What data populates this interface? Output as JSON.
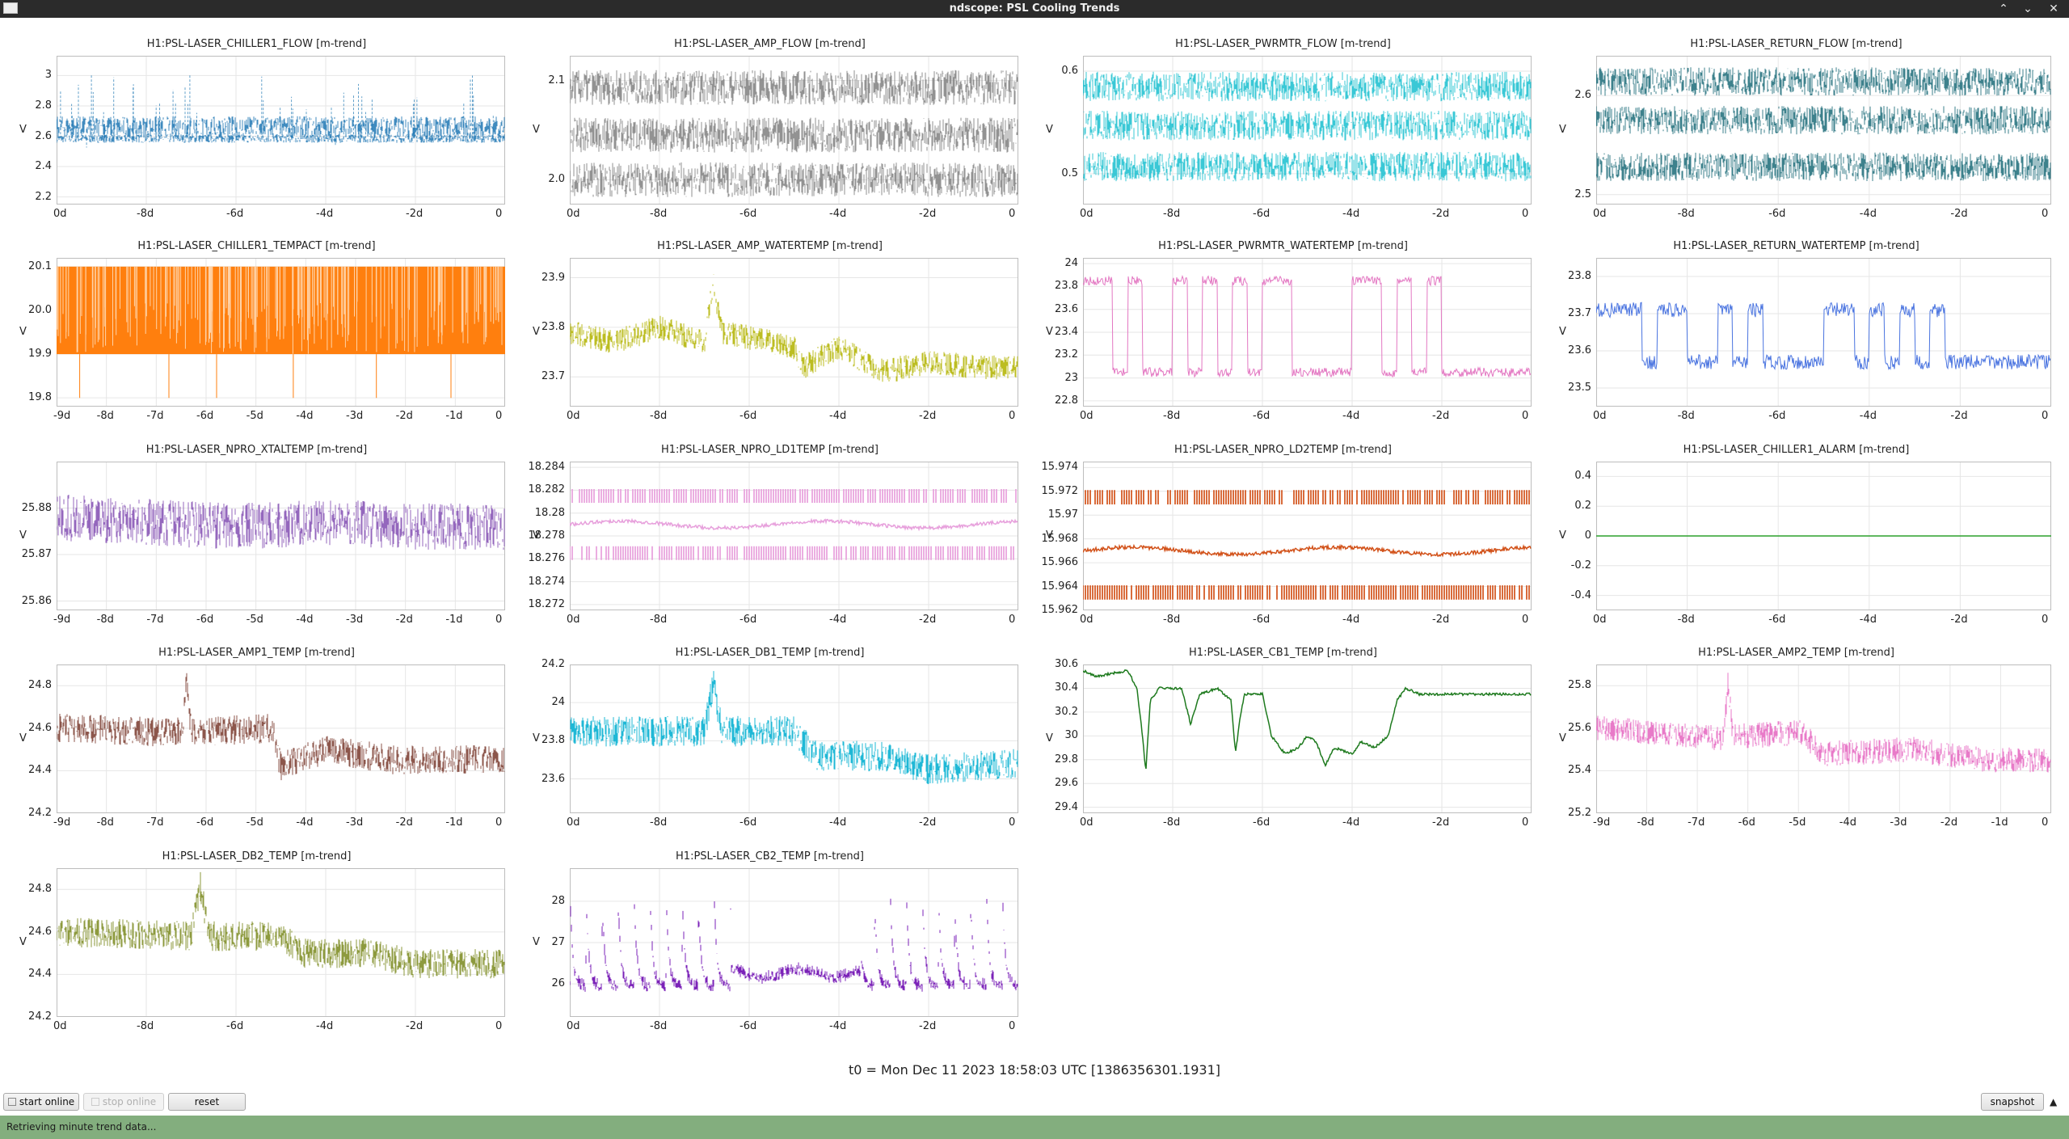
{
  "window": {
    "title": "ndscope: PSL Cooling Trends",
    "controls": [
      "⌃",
      "⌄",
      "✕"
    ]
  },
  "x_axis_prefix": "",
  "y_label": "V",
  "panels": [
    {
      "id": "chiller1-flow",
      "title": "H1:PSL-LASER_CHILLER1_FLOW [m-trend]",
      "color": "#1f77b4",
      "ylim": [
        2.15,
        3.13
      ],
      "yticks": [
        "3",
        "2.8",
        "2.6",
        "2.4",
        "2.2"
      ],
      "xticks": [
        "0d",
        "-8d",
        "-6d",
        "-4d",
        "-2d",
        "0"
      ],
      "style": "bands",
      "bands": [
        {
          "y": 2.585,
          "w": 0.035
        },
        {
          "y": 2.66,
          "w": 0.09
        }
      ],
      "spikes": true
    },
    {
      "id": "amp-flow",
      "title": "H1:PSL-LASER_AMP_FLOW [m-trend]",
      "color": "#7f7f7f",
      "ylim": [
        1.975,
        2.125
      ],
      "yticks": [
        "2.1",
        "2.0"
      ],
      "xticks": [
        "0d",
        "-8d",
        "-6d",
        "-4d",
        "-2d",
        "0"
      ],
      "style": "bands",
      "bands": [
        {
          "y": 2.093,
          "w": 0.022
        },
        {
          "y": 2.045,
          "w": 0.022
        },
        {
          "y": 2.0,
          "w": 0.022
        }
      ]
    },
    {
      "id": "pwrmtr-flow",
      "title": "H1:PSL-LASER_PWRMTR_FLOW [m-trend]",
      "color": "#17becf",
      "ylim": [
        0.47,
        0.615
      ],
      "yticks": [
        "0.6",
        "0.5"
      ],
      "xticks": [
        "0d",
        "-8d",
        "-6d",
        "-4d",
        "-2d",
        "0"
      ],
      "style": "bands",
      "bands": [
        {
          "y": 0.585,
          "w": 0.018
        },
        {
          "y": 0.547,
          "w": 0.018
        },
        {
          "y": 0.507,
          "w": 0.018
        }
      ]
    },
    {
      "id": "return-flow",
      "title": "H1:PSL-LASER_RETURN_FLOW [m-trend]",
      "color": "#1b6b78",
      "ylim": [
        2.49,
        2.64
      ],
      "yticks": [
        "2.6",
        "2.5"
      ],
      "xticks": [
        "0d",
        "-8d",
        "-6d",
        "-4d",
        "-2d",
        "0"
      ],
      "style": "bands",
      "bands": [
        {
          "y": 2.614,
          "w": 0.018
        },
        {
          "y": 2.575,
          "w": 0.018
        },
        {
          "y": 2.528,
          "w": 0.018
        }
      ]
    },
    {
      "id": "chiller1-tempact",
      "title": "H1:PSL-LASER_CHILLER1_TEMPACT [m-trend]",
      "color": "#ff7f0e",
      "ylim": [
        19.78,
        20.12
      ],
      "yticks": [
        "20.1",
        "20.0",
        "19.9",
        "19.8"
      ],
      "xticks": [
        "-9d",
        "-8d",
        "-7d",
        "-6d",
        "-5d",
        "-4d",
        "-3d",
        "-2d",
        "-1d",
        "0"
      ],
      "style": "fill",
      "fill": [
        19.9,
        20.1
      ],
      "spikes": true
    },
    {
      "id": "amp-watertemp",
      "title": "H1:PSL-LASER_AMP_WATERTEMP [m-trend]",
      "color": "#bcbd22",
      "ylim": [
        23.64,
        23.94
      ],
      "yticks": [
        "23.9",
        "23.8",
        "23.7"
      ],
      "xticks": [
        "0d",
        "-8d",
        "-6d",
        "-4d",
        "-2d",
        "0"
      ],
      "style": "noisy",
      "knots": [
        [
          0,
          23.79
        ],
        [
          0.1,
          23.77
        ],
        [
          0.2,
          23.8
        ],
        [
          0.3,
          23.77
        ],
        [
          0.32,
          23.89
        ],
        [
          0.34,
          23.79
        ],
        [
          0.45,
          23.77
        ],
        [
          0.5,
          23.76
        ],
        [
          0.52,
          23.72
        ],
        [
          0.6,
          23.76
        ],
        [
          0.7,
          23.71
        ],
        [
          0.8,
          23.73
        ],
        [
          0.9,
          23.72
        ],
        [
          1,
          23.72
        ]
      ],
      "amp": 0.025
    },
    {
      "id": "pwrmtr-watertemp",
      "title": "H1:PSL-LASER_PWRMTR_WATERTEMP [m-trend]",
      "color": "#e377c2",
      "ylim": [
        22.75,
        24.05
      ],
      "yticks": [
        "24",
        "23.8",
        "23.6",
        "23.4",
        "23.2",
        "23",
        "22.8"
      ],
      "xticks": [
        "0d",
        "-8d",
        "-6d",
        "-4d",
        "-2d",
        "0"
      ],
      "style": "square",
      "hi": 23.85,
      "lo": 23.05,
      "pattern": [
        1,
        1,
        0,
        1,
        0,
        0,
        1,
        0,
        1,
        0,
        1,
        0,
        1,
        1,
        0,
        0,
        0,
        0,
        1,
        1,
        0,
        1,
        0,
        1,
        0,
        0,
        0,
        0,
        0,
        0
      ],
      "amp": 0.04
    },
    {
      "id": "return-watertemp",
      "title": "H1:PSL-LASER_RETURN_WATERTEMP [m-trend]",
      "color": "#4a74e0",
      "ylim": [
        23.45,
        23.85
      ],
      "yticks": [
        "23.8",
        "23.7",
        "23.6",
        "23.5"
      ],
      "xticks": [
        "0d",
        "-8d",
        "-6d",
        "-4d",
        "-2d",
        "0"
      ],
      "style": "square",
      "hi": 23.71,
      "lo": 23.57,
      "pattern": [
        1,
        1,
        1,
        0,
        1,
        1,
        0,
        0,
        1,
        0,
        1,
        0,
        0,
        0,
        0,
        1,
        1,
        0,
        1,
        0,
        1,
        0,
        1,
        0,
        0,
        0,
        0,
        0,
        0,
        0
      ],
      "amp": 0.02
    },
    {
      "id": "npro-xtaltemp",
      "title": "H1:PSL-LASER_NPRO_XTALTEMP [m-trend]",
      "color": "#9467bd",
      "ylim": [
        25.858,
        25.89
      ],
      "yticks": [
        "25.88",
        "25.87",
        "25.86"
      ],
      "xticks": [
        "-9d",
        "-8d",
        "-7d",
        "-6d",
        "-5d",
        "-4d",
        "-3d",
        "-2d",
        "-1d",
        "0"
      ],
      "style": "noisy",
      "knots": [
        [
          0,
          25.878
        ],
        [
          0.2,
          25.877
        ],
        [
          0.4,
          25.876
        ],
        [
          0.6,
          25.877
        ],
        [
          0.8,
          25.876
        ],
        [
          1,
          25.876
        ]
      ],
      "amp": 0.005
    },
    {
      "id": "npro-ld1temp",
      "title": "H1:PSL-LASER_NPRO_LD1TEMP [m-trend]",
      "color": "#e7a0dc",
      "ylim": [
        18.2715,
        18.2845
      ],
      "yticks": [
        "18.284",
        "18.282",
        "18.28",
        "18.278",
        "18.276",
        "18.274",
        "18.272"
      ],
      "xticks": [
        "0d",
        "-8d",
        "-6d",
        "-4d",
        "-2d",
        "0"
      ],
      "style": "quant",
      "levels": [
        18.2815,
        18.279,
        18.2765
      ],
      "mid": 1
    },
    {
      "id": "npro-ld2temp",
      "title": "H1:PSL-LASER_NPRO_LD2TEMP [m-trend]",
      "color": "#d2521a",
      "ylim": [
        15.962,
        15.9745
      ],
      "yticks": [
        "15.974",
        "15.972",
        "15.97",
        "15.968",
        "15.966",
        "15.964",
        "15.962"
      ],
      "xticks": [
        "0d",
        "-8d",
        "-6d",
        "-4d",
        "-2d",
        "0"
      ],
      "style": "quant",
      "levels": [
        15.9715,
        15.967,
        15.9635
      ],
      "mid": 1
    },
    {
      "id": "chiller1-alarm",
      "title": "H1:PSL-LASER_CHILLER1_ALARM [m-trend]",
      "color": "#2ca02c",
      "ylim": [
        -0.5,
        0.5
      ],
      "yticks": [
        "0.4",
        "0.2",
        "0",
        "-0.2",
        "-0.4"
      ],
      "xticks": [
        "0d",
        "-8d",
        "-6d",
        "-4d",
        "-2d",
        "0"
      ],
      "style": "flat",
      "value": 0
    },
    {
      "id": "amp1-temp",
      "title": "H1:PSL-LASER_AMP1_TEMP [m-trend]",
      "color": "#8c564b",
      "ylim": [
        24.2,
        24.9
      ],
      "yticks": [
        "24.8",
        "24.6",
        "24.4",
        "24.2"
      ],
      "xticks": [
        "-9d",
        "-8d",
        "-7d",
        "-6d",
        "-5d",
        "-4d",
        "-3d",
        "-2d",
        "-1d",
        "0"
      ],
      "style": "noisy",
      "knots": [
        [
          0,
          24.6
        ],
        [
          0.28,
          24.58
        ],
        [
          0.29,
          24.83
        ],
        [
          0.3,
          24.58
        ],
        [
          0.48,
          24.6
        ],
        [
          0.5,
          24.42
        ],
        [
          0.6,
          24.5
        ],
        [
          0.75,
          24.45
        ],
        [
          1,
          24.45
        ]
      ],
      "amp": 0.07
    },
    {
      "id": "db1-temp",
      "title": "H1:PSL-LASER_DB1_TEMP [m-trend]",
      "color": "#1fb8d6",
      "ylim": [
        23.42,
        24.2
      ],
      "yticks": [
        "24.2",
        "24",
        "23.8",
        "23.6"
      ],
      "xticks": [
        "0d",
        "-8d",
        "-6d",
        "-4d",
        "-2d",
        "0"
      ],
      "style": "noisy",
      "knots": [
        [
          0,
          23.85
        ],
        [
          0.3,
          23.85
        ],
        [
          0.32,
          24.1
        ],
        [
          0.34,
          23.85
        ],
        [
          0.5,
          23.85
        ],
        [
          0.55,
          23.72
        ],
        [
          0.7,
          23.72
        ],
        [
          0.8,
          23.65
        ],
        [
          1,
          23.68
        ]
      ],
      "amp": 0.08
    },
    {
      "id": "cb1-temp",
      "title": "H1:PSL-LASER_CB1_TEMP [m-trend]",
      "color": "#1e7a1e",
      "ylim": [
        29.35,
        30.6
      ],
      "yticks": [
        "30.6",
        "30.4",
        "30.2",
        "30",
        "29.8",
        "29.6",
        "29.4"
      ],
      "xticks": [
        "0d",
        "-8d",
        "-6d",
        "-4d",
        "-2d",
        "0"
      ],
      "style": "curve",
      "knots": [
        [
          0,
          30.55
        ],
        [
          0.03,
          30.5
        ],
        [
          0.1,
          30.55
        ],
        [
          0.12,
          30.4
        ],
        [
          0.13,
          30.1
        ],
        [
          0.14,
          29.7
        ],
        [
          0.15,
          30.3
        ],
        [
          0.17,
          30.4
        ],
        [
          0.22,
          30.4
        ],
        [
          0.24,
          30.1
        ],
        [
          0.26,
          30.35
        ],
        [
          0.3,
          30.4
        ],
        [
          0.33,
          30.3
        ],
        [
          0.34,
          29.85
        ],
        [
          0.35,
          30.15
        ],
        [
          0.36,
          30.35
        ],
        [
          0.4,
          30.35
        ],
        [
          0.42,
          30.0
        ],
        [
          0.45,
          29.85
        ],
        [
          0.48,
          29.9
        ],
        [
          0.5,
          30.0
        ],
        [
          0.52,
          29.95
        ],
        [
          0.54,
          29.75
        ],
        [
          0.56,
          29.9
        ],
        [
          0.6,
          29.85
        ],
        [
          0.62,
          29.95
        ],
        [
          0.65,
          29.9
        ],
        [
          0.68,
          30.0
        ],
        [
          0.7,
          30.3
        ],
        [
          0.72,
          30.4
        ],
        [
          0.75,
          30.35
        ],
        [
          0.77,
          30.3
        ],
        [
          0.7,
          30.3
        ]
      ],
      "amp": 0.02
    },
    {
      "id": "amp2-temp",
      "title": "H1:PSL-LASER_AMP2_TEMP [m-trend]",
      "color": "#e87ac8",
      "ylim": [
        25.2,
        25.9
      ],
      "yticks": [
        "25.8",
        "25.6",
        "25.4",
        "25.2"
      ],
      "xticks": [
        "-9d",
        "-8d",
        "-7d",
        "-6d",
        "-5d",
        "-4d",
        "-3d",
        "-2d",
        "-1d",
        "0"
      ],
      "style": "noisy",
      "knots": [
        [
          0,
          25.6
        ],
        [
          0.28,
          25.55
        ],
        [
          0.29,
          25.82
        ],
        [
          0.3,
          25.56
        ],
        [
          0.45,
          25.58
        ],
        [
          0.5,
          25.48
        ],
        [
          0.7,
          25.5
        ],
        [
          0.85,
          25.45
        ],
        [
          1,
          25.45
        ]
      ],
      "amp": 0.06
    },
    {
      "id": "db2-temp",
      "title": "H1:PSL-LASER_DB2_TEMP [m-trend]",
      "color": "#8d9a3e",
      "ylim": [
        24.2,
        24.9
      ],
      "yticks": [
        "24.8",
        "24.6",
        "24.4",
        "24.2"
      ],
      "xticks": [
        "0d",
        "-8d",
        "-6d",
        "-4d",
        "-2d",
        "0"
      ],
      "style": "noisy",
      "knots": [
        [
          0,
          24.6
        ],
        [
          0.3,
          24.58
        ],
        [
          0.32,
          24.82
        ],
        [
          0.34,
          24.58
        ],
        [
          0.5,
          24.58
        ],
        [
          0.55,
          24.5
        ],
        [
          0.7,
          24.5
        ],
        [
          0.8,
          24.45
        ],
        [
          1,
          24.45
        ]
      ],
      "amp": 0.07
    },
    {
      "id": "cb2-temp",
      "title": "H1:PSL-LASER_CB2_TEMP [m-trend]",
      "color": "#7b22b8",
      "ylim": [
        25.2,
        28.8
      ],
      "yticks": [
        "28",
        "27",
        "26"
      ],
      "xticks": [
        "0d",
        "-8d",
        "-6d",
        "-4d",
        "-2d",
        "0"
      ],
      "style": "sawtooth",
      "base": 26.0,
      "peak": 28.4,
      "calm": [
        0.36,
        0.65
      ]
    }
  ],
  "t0_label": "t0 = Mon Dec 11 2023 18:58:03 UTC [1386356301.1931]",
  "buttons": {
    "start_online": "start online",
    "stop_online": "stop online",
    "reset": "reset",
    "snapshot": "snapshot",
    "arrow": "▲"
  },
  "status": "Retrieving minute trend data..."
}
